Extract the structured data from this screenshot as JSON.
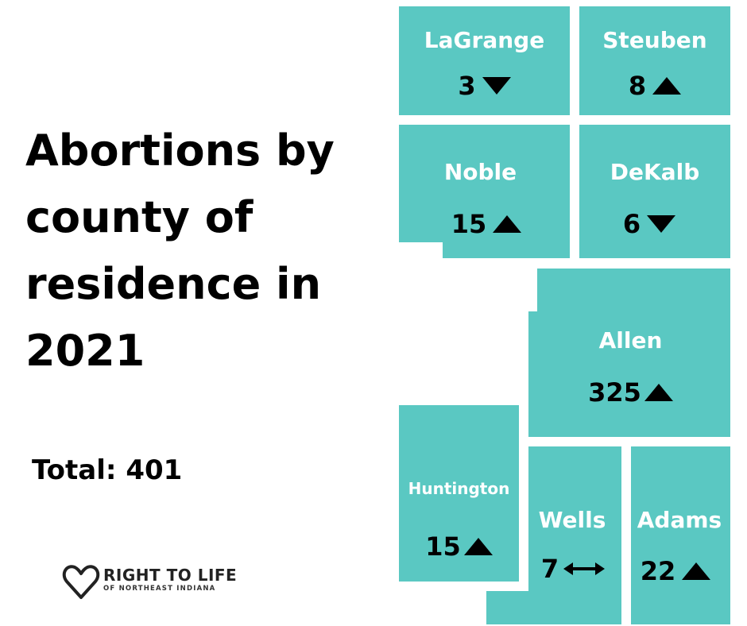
{
  "title": "Abortions by county of residence in 2021",
  "total": "Total: 401",
  "logo": {
    "line1": "RIGHT TO LIFE",
    "line2": "OF NORTHEAST INDIANA"
  },
  "colors": {
    "county_fill": "#5ac8c2",
    "county_label": "#ffffff",
    "value_text": "#000000"
  },
  "counties": {
    "lagrange": {
      "name": "LaGrange",
      "count": "3",
      "trend": "down"
    },
    "steuben": {
      "name": "Steuben",
      "count": "8",
      "trend": "up"
    },
    "noble": {
      "name": "Noble",
      "count": "15",
      "trend": "up"
    },
    "dekalb": {
      "name": "DeKalb",
      "count": "6",
      "trend": "down"
    },
    "allen": {
      "name": "Allen",
      "count": "325",
      "trend": "up"
    },
    "huntington": {
      "name": "Huntington",
      "count": "15",
      "trend": "up"
    },
    "wells": {
      "name": "Wells",
      "count": "7",
      "trend": "unchanged"
    },
    "adams": {
      "name": "Adams",
      "count": "22",
      "trend": "up"
    }
  }
}
